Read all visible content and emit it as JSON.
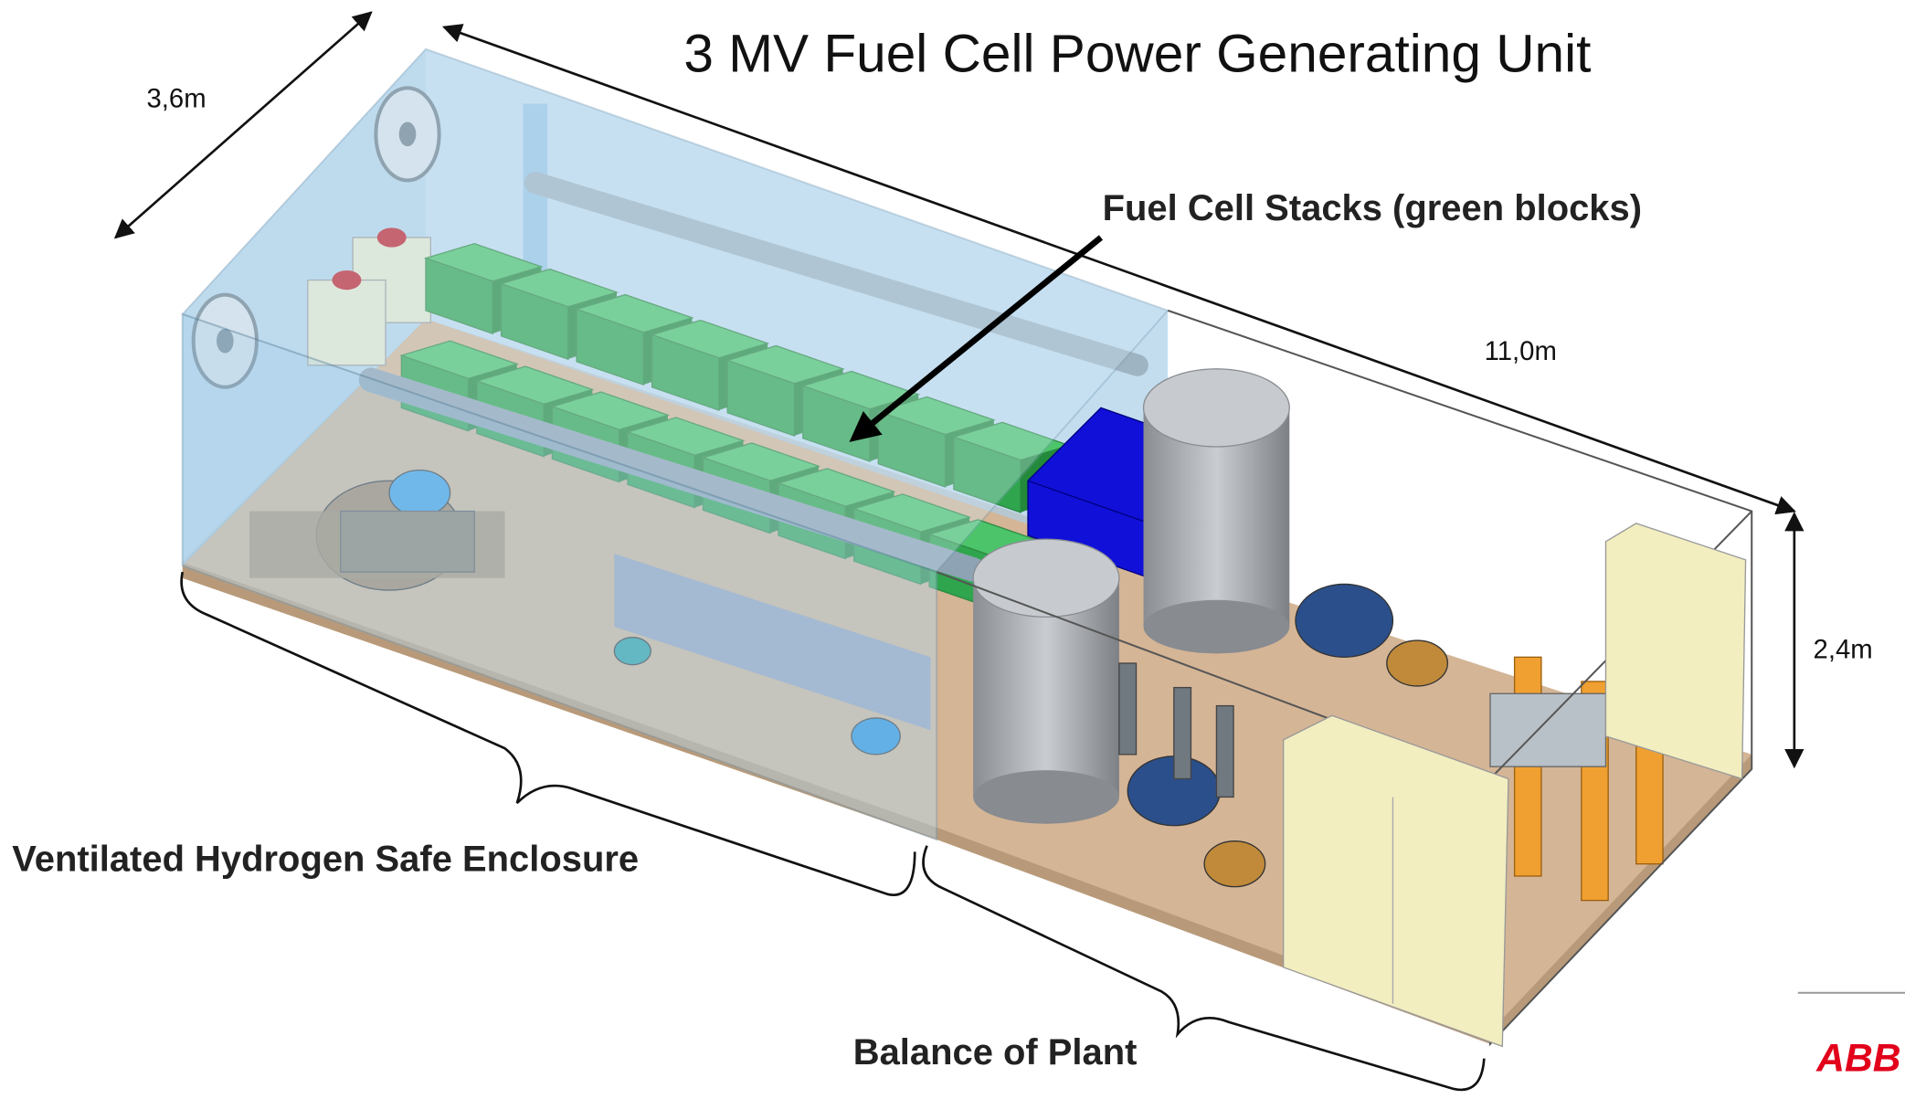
{
  "title": "3 MV Fuel Cell Power Generating Unit",
  "dimensions": {
    "width": "3,6m",
    "length": "11,0m",
    "height": "2,4m"
  },
  "labels": {
    "fuel_cell_stacks": "Fuel Cell Stacks (green blocks)",
    "enclosure": "Ventilated Hydrogen Safe Enclosure",
    "balance_of_plant": "Balance of Plant"
  },
  "logo": "ABB"
}
